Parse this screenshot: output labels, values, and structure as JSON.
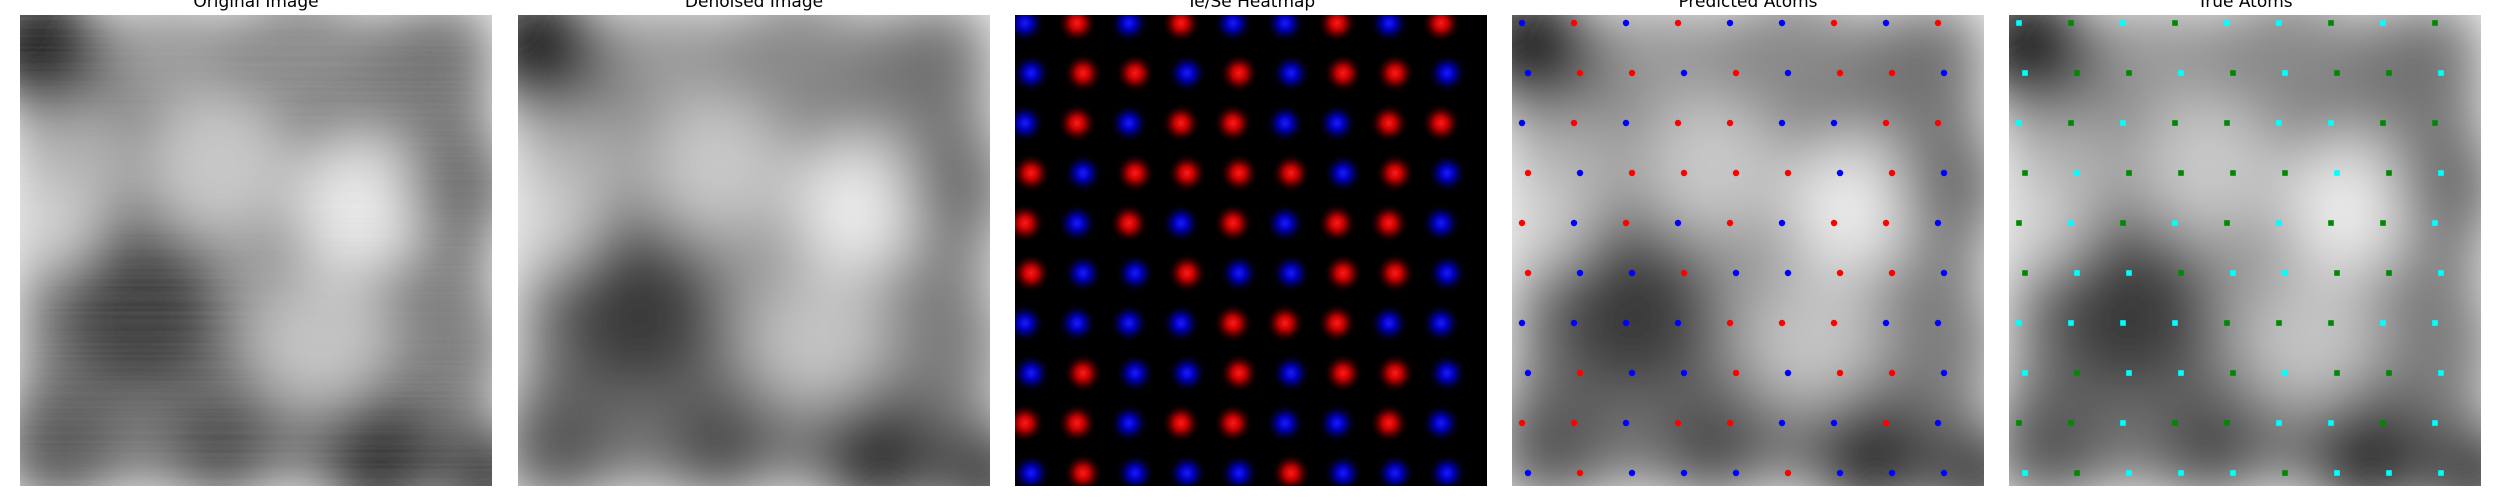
{
  "panels": [
    {
      "title": "Original Image"
    },
    {
      "title": "Denoised Image"
    },
    {
      "title": "Te/Se Heatmap"
    },
    {
      "title": "Predicted Atoms"
    },
    {
      "title": "True Atoms"
    }
  ],
  "colors": {
    "te": "#e00000",
    "se": "#0000dd",
    "true_a": "#00ffff",
    "true_b": "#008800",
    "pred_red": "#ff0000",
    "pred_blue": "#0000ff"
  }
}
